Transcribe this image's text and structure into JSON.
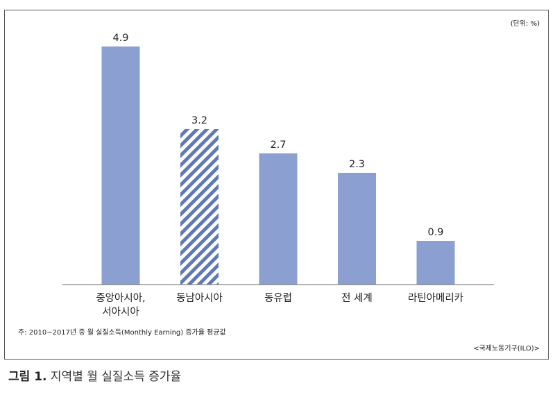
{
  "unit_note": "(단위: %)",
  "footnote": "주: 2010~2017년 중 월 실질소득(Monthly Earning) 증가율 평균값",
  "source": "<국제노동기구(ILO)>",
  "figure_caption": {
    "number": "그림 1.",
    "title": "지역별 월 실질소득 증가율"
  },
  "colors": {
    "bar": "#8b9fd0",
    "hatch": "#5f79b8",
    "axis": "#666666"
  },
  "chart_data": {
    "type": "bar",
    "categories": [
      [
        "중앙아시아,",
        "서아시아"
      ],
      [
        "동남아시아"
      ],
      [
        "동유럽"
      ],
      [
        "전 세계"
      ],
      [
        "라틴아메리카"
      ]
    ],
    "values": [
      4.9,
      3.2,
      2.7,
      2.3,
      0.9
    ],
    "value_labels": [
      "4.9",
      "3.2",
      "2.7",
      "2.3",
      "0.9"
    ],
    "hatched": [
      false,
      true,
      false,
      false,
      false
    ],
    "ylim": [
      0,
      5
    ],
    "title": "",
    "xlabel": "",
    "ylabel": "",
    "grid": false,
    "legend": "none"
  }
}
